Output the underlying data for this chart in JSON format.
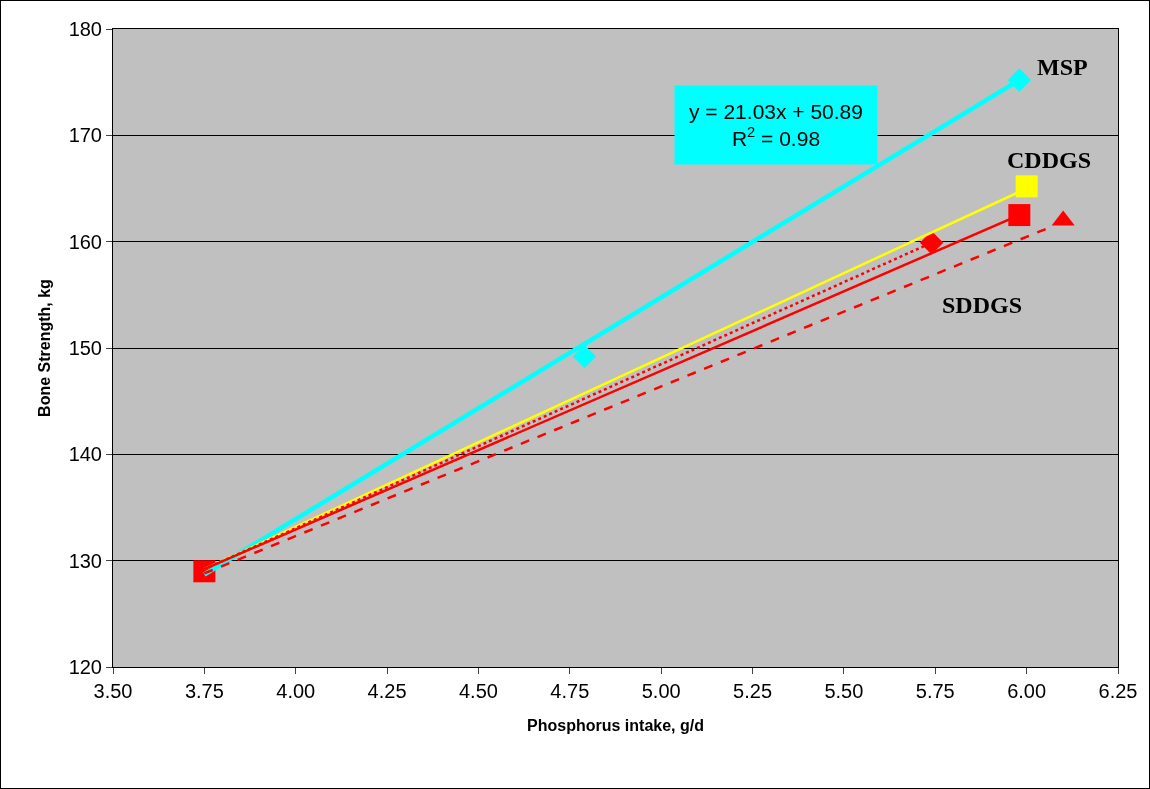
{
  "chart_data": {
    "type": "scatter",
    "xlabel": "Phosphorus intake, g/d",
    "ylabel": "Bone Strength, kg",
    "xlim": [
      3.5,
      6.25
    ],
    "xticks": [
      {
        "value": 3.5,
        "label": "3.50"
      },
      {
        "value": 3.75,
        "label": "3.75"
      },
      {
        "value": 4,
        "label": "4.00"
      },
      {
        "value": 4.25,
        "label": "4.25"
      },
      {
        "value": 4.5,
        "label": "4.50"
      },
      {
        "value": 4.75,
        "label": "4.75"
      },
      {
        "value": 5,
        "label": "5.00"
      },
      {
        "value": 5.25,
        "label": "5.25"
      },
      {
        "value": 5.5,
        "label": "5.50"
      },
      {
        "value": 5.75,
        "label": "5.75"
      },
      {
        "value": 6,
        "label": "6.00"
      },
      {
        "value": 6.25,
        "label": "6.25"
      }
    ],
    "ylim": [
      120,
      180
    ],
    "yticks": [
      120,
      130,
      140,
      150,
      160,
      170,
      180
    ],
    "grid": "y",
    "annotations": [
      "y = 21.03x + 50.89\nR$^{2}$ = 0.98"
    ],
    "series": [
      {
        "type": "line",
        "color": "#00ffff",
        "x": [
          3.75,
          5.98
        ],
        "values": [
          128.7,
          175.2
        ],
        "line_style": "solid",
        "marker": "none"
      },
      {
        "type": "line",
        "color": "#ffff00",
        "x": [
          3.75,
          6.0
        ],
        "values": [
          129.2,
          165.0
        ],
        "line_style": "solid",
        "marker": "none"
      },
      {
        "type": "line",
        "color": "#ff0000",
        "x": [
          3.75,
          5.98
        ],
        "values": [
          129.2,
          162.5
        ],
        "line_style": "solid",
        "marker": "none"
      },
      {
        "type": "line",
        "color": "#ff0000",
        "x": [
          3.75,
          5.74
        ],
        "values": [
          129.2,
          159.9
        ],
        "line_style": "dotted",
        "marker": "none"
      },
      {
        "type": "line",
        "name": "SDDGS",
        "color": "#ff0000",
        "x": [
          3.75,
          6.06
        ],
        "values": [
          128.8,
          161.3
        ],
        "line_style": "dashed",
        "marker": "none"
      },
      {
        "name": "MSP",
        "color": "#00ffff",
        "x": [
          4.79,
          5.98
        ],
        "values": [
          149.2,
          175.2
        ],
        "marker": "diamond"
      },
      {
        "name": "CDDGS",
        "color": "#ffff00",
        "x": [
          6.0
        ],
        "values": [
          165.2
        ],
        "marker": "square"
      },
      {
        "color": "#ff0000",
        "x": [
          5.74
        ],
        "values": [
          159.9
        ],
        "marker": "diamond"
      },
      {
        "color": "#ff0000",
        "x": [
          6.1
        ],
        "values": [
          162.0
        ],
        "marker": "triangle"
      },
      {
        "color": "#ff0000",
        "x": [
          3.75,
          5.98
        ],
        "values": [
          129.0,
          162.5
        ],
        "marker": "square"
      }
    ]
  }
}
